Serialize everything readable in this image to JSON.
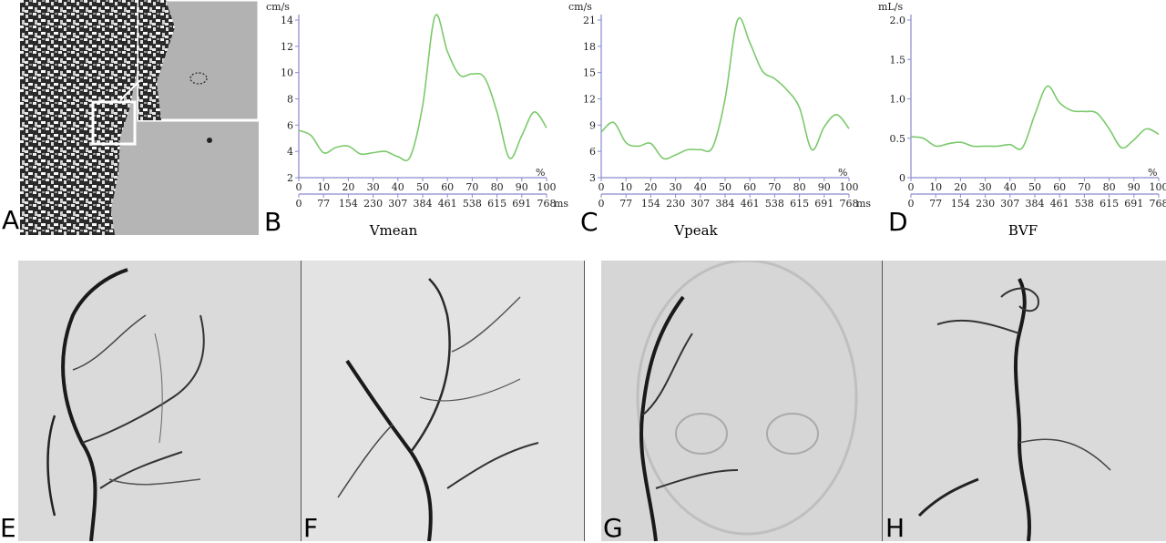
{
  "panel_letters": {
    "a": "A",
    "b": "B",
    "c": "C",
    "d": "D",
    "e": "E",
    "f": "F",
    "g": "G",
    "h": "H"
  },
  "chart_data": [
    {
      "type": "line",
      "panel": "B",
      "caption": "Vmean",
      "ylabel": "cm/s",
      "xlabel_pct": "%",
      "xlabel_ms": "ms",
      "ylim": [
        2,
        14
      ],
      "yticks": [
        "2",
        "4",
        "6",
        "8",
        "10",
        "12",
        "14"
      ],
      "x_pct_ticks": [
        "0",
        "10",
        "20",
        "30",
        "40",
        "50",
        "60",
        "70",
        "80",
        "90",
        "100"
      ],
      "x_ms_ticks": [
        "0",
        "77",
        "154",
        "230",
        "307",
        "384",
        "461",
        "538",
        "615",
        "691",
        "768"
      ],
      "series": [
        {
          "color": "#7cc96c",
          "x": [
            0,
            5,
            10,
            15,
            20,
            25,
            30,
            35,
            40,
            45,
            50,
            55,
            60,
            65,
            70,
            75,
            80,
            85,
            90,
            95,
            100
          ],
          "y": [
            5.6,
            5.2,
            3.9,
            4.3,
            4.4,
            3.8,
            3.9,
            4.0,
            3.6,
            3.6,
            7.5,
            14.3,
            11.6,
            9.8,
            9.9,
            9.6,
            7.0,
            3.5,
            5.2,
            7.0,
            5.8
          ]
        }
      ]
    },
    {
      "type": "line",
      "panel": "C",
      "caption": "Vpeak",
      "ylabel": "cm/s",
      "xlabel_pct": "%",
      "xlabel_ms": "ms",
      "ylim": [
        3,
        21
      ],
      "yticks": [
        "3",
        "6",
        "9",
        "12",
        "15",
        "18",
        "21"
      ],
      "x_pct_ticks": [
        "0",
        "10",
        "20",
        "30",
        "40",
        "50",
        "60",
        "70",
        "80",
        "90",
        "100"
      ],
      "x_ms_ticks": [
        "0",
        "77",
        "154",
        "230",
        "307",
        "384",
        "461",
        "538",
        "615",
        "691",
        "768"
      ],
      "series": [
        {
          "color": "#7cc96c",
          "x": [
            0,
            5,
            10,
            15,
            20,
            25,
            30,
            35,
            40,
            45,
            50,
            55,
            60,
            65,
            70,
            75,
            80,
            85,
            90,
            95,
            100
          ],
          "y": [
            8.2,
            9.3,
            7.0,
            6.6,
            6.9,
            5.2,
            5.6,
            6.2,
            6.2,
            6.5,
            12.0,
            21.0,
            18.4,
            15.2,
            14.3,
            13.0,
            11.0,
            6.2,
            8.8,
            10.2,
            8.6
          ]
        }
      ]
    },
    {
      "type": "line",
      "panel": "D",
      "caption": "BVF",
      "ylabel": "mL/s",
      "xlabel_pct": "%",
      "xlabel_ms": "ms",
      "ylim": [
        0,
        2.0
      ],
      "yticks": [
        "0",
        "0.5",
        "1.0",
        "1.5",
        "2.0"
      ],
      "x_pct_ticks": [
        "0",
        "10",
        "20",
        "30",
        "40",
        "50",
        "60",
        "70",
        "80",
        "90",
        "100"
      ],
      "x_ms_ticks": [
        "0",
        "77",
        "154",
        "230",
        "307",
        "384",
        "461",
        "538",
        "615",
        "691",
        "768"
      ],
      "series": [
        {
          "color": "#7cc96c",
          "x": [
            0,
            5,
            10,
            15,
            20,
            25,
            30,
            35,
            40,
            45,
            50,
            55,
            60,
            65,
            70,
            75,
            80,
            85,
            90,
            95,
            100
          ],
          "y": [
            0.52,
            0.5,
            0.4,
            0.43,
            0.45,
            0.4,
            0.4,
            0.4,
            0.42,
            0.38,
            0.8,
            1.16,
            0.95,
            0.85,
            0.84,
            0.82,
            0.62,
            0.38,
            0.48,
            0.62,
            0.55
          ]
        }
      ]
    }
  ]
}
